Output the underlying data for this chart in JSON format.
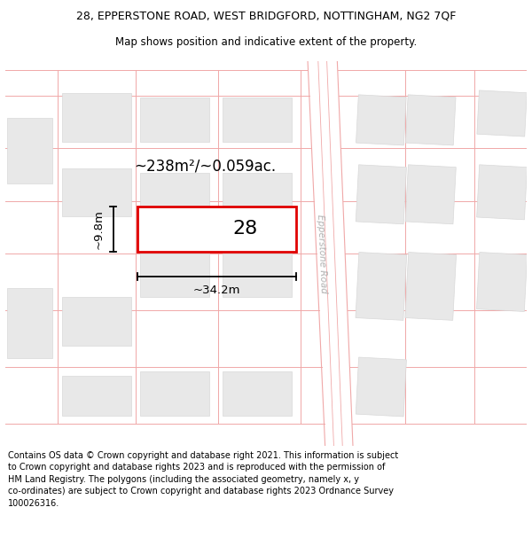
{
  "title_line1": "28, EPPERSTONE ROAD, WEST BRIDGFORD, NOTTINGHAM, NG2 7QF",
  "title_line2": "Map shows position and indicative extent of the property.",
  "footer_text": "Contains OS data © Crown copyright and database right 2021. This information is subject\nto Crown copyright and database rights 2023 and is reproduced with the permission of\nHM Land Registry. The polygons (including the associated geometry, namely x, y\nco-ordinates) are subject to Crown copyright and database rights 2023 Ordnance Survey\n100026316.",
  "background_color": "#ffffff",
  "road_line_color": "#f0a8a8",
  "building_fill_color": "#e8e8e8",
  "building_outline_color": "#d8d8d8",
  "plot_outline_color": "#e00000",
  "plot_fill_color": "#ffffff",
  "road_label": "Epperstone Road",
  "plot_number": "28",
  "area_label": "~238m²/~0.059ac.",
  "width_label": "~34.2m",
  "height_label": "~9.8m",
  "title_fontsize": 9.0,
  "subtitle_fontsize": 8.5,
  "footer_fontsize": 7.0,
  "map_border_color": "#cccccc",
  "dim_line_color": "#000000"
}
